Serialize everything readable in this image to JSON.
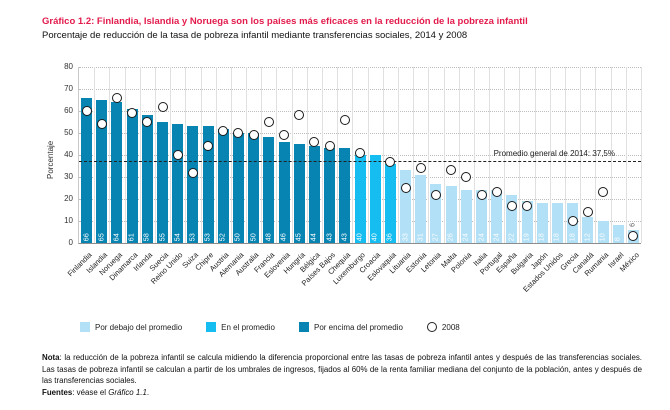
{
  "header": {
    "title": "Gráfico 1.2: Finlandia, Islandia y Noruega son los países más eficaces en la reducción de la pobreza infantil",
    "subtitle": "Porcentaje de reducción de la tasa de pobreza infantil mediante transferencias sociales, 2014 y 2008"
  },
  "colors": {
    "title_accent": "#e31b4c",
    "above_average_bar": "#0884b2",
    "at_average_bar": "#16bdf0",
    "below_average_bar": "#b2e0f6",
    "circle_outline": "#1a1a1a"
  },
  "chart_data": {
    "type": "bar",
    "title": "Porcentaje de reducción de la tasa de pobreza infantil mediante transferencias sociales, 2014 y 2008",
    "xlabel": "",
    "ylabel": "Porcentaje",
    "ylim": [
      0,
      80
    ],
    "ytick_step": 10,
    "grid": "horizontal dotted",
    "legend_position": "bottom",
    "average_line": {
      "value": 37.5,
      "label": "Promedio general de 2014: 37,5%"
    },
    "categories": [
      "Finlandia",
      "Islandia",
      "Noruega",
      "Dinamarca",
      "Irlanda",
      "Suecia",
      "Reino Unido",
      "Suiza",
      "Chipre",
      "Austria",
      "Alemania",
      "Australia",
      "Francia",
      "Eslovenia",
      "Hungría",
      "Bélgica",
      "Países Bajos",
      "Chequia",
      "Luxemburgo",
      "Croacia",
      "Eslovaquia",
      "Lituania",
      "Estonia",
      "Letonia",
      "Malta",
      "Polonia",
      "Italia",
      "Portugal",
      "España",
      "Bulgaria",
      "Japón",
      "Estados Unidos",
      "Grecia",
      "Canadá",
      "Rumania",
      "Israel",
      "México"
    ],
    "series": [
      {
        "name": "2014",
        "values": [
          66,
          65,
          64,
          61,
          58,
          55,
          54,
          53,
          53,
          52,
          50,
          50,
          48,
          46,
          45,
          44,
          43,
          43,
          40,
          40,
          36,
          33,
          31,
          27,
          26,
          24,
          24,
          24,
          22,
          19,
          18,
          18,
          18,
          12,
          10,
          8,
          6
        ]
      },
      {
        "name": "2008",
        "values": [
          60,
          54,
          66,
          59,
          55,
          62,
          40,
          32,
          44,
          51,
          50,
          49,
          55,
          49,
          58,
          46,
          44,
          56,
          41,
          null,
          37,
          25,
          34,
          22,
          33,
          30,
          22,
          23,
          17,
          17,
          null,
          null,
          10,
          14,
          23,
          null,
          3
        ]
      }
    ],
    "bar_groups": [
      "above",
      "above",
      "above",
      "above",
      "above",
      "above",
      "above",
      "above",
      "above",
      "above",
      "above",
      "above",
      "above",
      "above",
      "above",
      "above",
      "above",
      "above",
      "average",
      "average",
      "average",
      "below",
      "below",
      "below",
      "below",
      "below",
      "below",
      "below",
      "below",
      "below",
      "below",
      "below",
      "below",
      "below",
      "below",
      "below",
      "below"
    ],
    "group_colors": {
      "below": "#b2e0f6",
      "average": "#16bdf0",
      "above": "#0884b2"
    },
    "legend": [
      {
        "key": "below",
        "label": "Por debajo del promedio",
        "swatch": "square",
        "color": "#b2e0f6"
      },
      {
        "key": "average",
        "label": "En el promedio",
        "swatch": "square",
        "color": "#16bdf0"
      },
      {
        "key": "above",
        "label": "Por encima del promedio",
        "swatch": "square",
        "color": "#0884b2"
      },
      {
        "key": "y2008",
        "label": "2008",
        "swatch": "circle",
        "color": "#ffffff"
      }
    ]
  },
  "notes": {
    "note_label": "Nota",
    "note_body": ": la reducción de la pobreza infantil se calcula midiendo la diferencia proporcional entre las tasas de pobreza infantil antes y después de las transferencias sociales. Las tasas de pobreza infantil se calculan a partir de los umbrales de ingresos, fijados al 60% de la renta familiar mediana del conjunto de la población, antes y después de las transferencias sociales.",
    "sources_label": "Fuentes",
    "sources_body": ": véase el ",
    "sources_ref": "Gráfico 1.1",
    "sources_period": "."
  }
}
